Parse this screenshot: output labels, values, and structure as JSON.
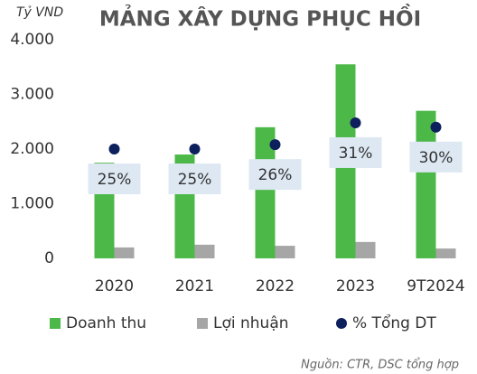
{
  "chart_data": {
    "type": "bar",
    "title": "MẢNG XÂY DỰNG PHỤC HỒI",
    "y_label": "Tỷ VND",
    "source": "Nguồn: CTR, DSC tổng hợp",
    "categories": [
      "2020",
      "2021",
      "2022",
      "2023",
      "9T2024"
    ],
    "series": [
      {
        "name": "Doanh thu",
        "color": "#4cb848",
        "values": [
          1750,
          1900,
          2400,
          3550,
          2700
        ]
      },
      {
        "name": "Lợi nhuận",
        "color": "#a6a6a6",
        "values": [
          200,
          250,
          230,
          300,
          180
        ]
      },
      {
        "name": "% Tổng DT",
        "color": "#0d1f5c",
        "type": "scatter",
        "axis": "y2",
        "values": [
          25,
          25,
          26,
          31,
          30
        ],
        "value_labels": [
          "25%",
          "25%",
          "26%",
          "31%",
          "30%"
        ]
      }
    ],
    "ylim": [
      0,
      4000
    ],
    "yticks": [
      0,
      {
        "value": 1000,
        "label": "1.000"
      },
      {
        "value": 2000,
        "label": "2.000"
      },
      {
        "value": 3000,
        "label": "3.000"
      },
      {
        "value": 4000,
        "label": "4.000"
      }
    ],
    "y2lim": [
      0,
      50
    ],
    "grid": false,
    "legend": "bottom"
  }
}
